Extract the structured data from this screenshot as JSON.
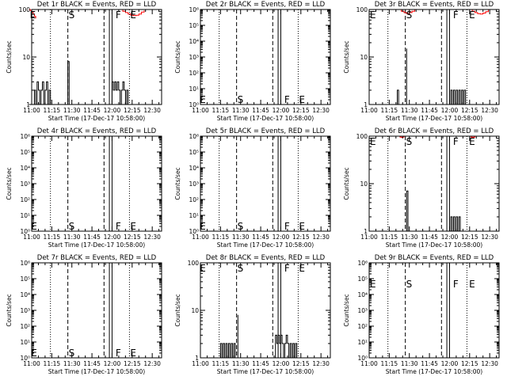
{
  "figure": {
    "background": "#ffffff",
    "foreground": "#000000",
    "lld_color": "#ff0000"
  },
  "chart_data": [
    {
      "type": "line",
      "title": "Det 1r BLACK = Events, RED = LLD",
      "xlabel": "Start Time (17-Dec-17 10:58:00)",
      "ylabel": "Counts/sec",
      "yscale": "log",
      "ylim": [
        1,
        100
      ],
      "yticks": [
        {
          "v": 1,
          "label": "1"
        },
        {
          "v": 10,
          "label": "10"
        },
        {
          "v": 100,
          "label": "100"
        }
      ],
      "xticks": [
        "11:00",
        "11:15",
        "11:30",
        "11:45",
        "12:00",
        "12:15",
        "12:30"
      ],
      "marker_labels": [
        {
          "text": "E",
          "x": "10:58",
          "y": 100
        },
        {
          "text": "S",
          "x": "11:27",
          "y": 100
        },
        {
          "text": "F",
          "x": "12:02",
          "y": 100
        },
        {
          "text": "E",
          "x": "12:13",
          "y": 100
        }
      ],
      "series": [
        {
          "color": "#000000",
          "x": [
            "10:58",
            "11:01",
            "11:02",
            "11:03",
            "11:04",
            "11:05",
            "11:06",
            "11:07",
            "11:08",
            "11:09",
            "11:10",
            "11:11",
            "11:12",
            "11:13",
            "11:14",
            "11:26",
            "11:27",
            "11:28",
            "11:59",
            "12:00",
            "12:01",
            "12:02",
            "12:03",
            "12:04",
            "12:05",
            "12:06",
            "12:07",
            "12:08",
            "12:09",
            "12:10",
            "12:11",
            "12:12"
          ],
          "y": [
            1,
            1,
            2,
            1,
            3,
            2,
            1,
            2,
            3,
            1,
            2,
            3,
            1,
            2,
            1,
            1,
            8,
            1,
            1,
            3,
            2,
            3,
            2,
            3,
            2,
            1,
            2,
            3,
            2,
            1,
            2,
            1
          ]
        },
        {
          "color": "#ff0000",
          "x": [
            "10:58",
            "10:59",
            "11:00",
            "11:01",
            "11:02",
            "11:03",
            "12:06",
            "12:08",
            "12:10",
            "12:12",
            "12:14",
            "12:16",
            "12:18",
            "12:20",
            "12:22",
            "12:24"
          ],
          "y": [
            100,
            95,
            88,
            80,
            72,
            65,
            100,
            92,
            86,
            80,
            76,
            74,
            76,
            80,
            88,
            96
          ]
        }
      ]
    },
    {
      "type": "line",
      "title": "Det 2r BLACK = Events, RED = LLD",
      "xlabel": "Start Time (17-Dec-17 10:58:00)",
      "ylabel": "Counts/sec",
      "yscale": "log",
      "ylim": [
        1,
        1000000
      ],
      "yticks": [
        {
          "v": 1,
          "label": "10⁰"
        },
        {
          "v": 10,
          "label": "10¹"
        },
        {
          "v": 100,
          "label": "10²"
        },
        {
          "v": 1000,
          "label": "10³"
        },
        {
          "v": 10000,
          "label": "10⁴"
        },
        {
          "v": 100000,
          "label": "10⁵"
        },
        {
          "v": 1000000,
          "label": "10⁶"
        }
      ],
      "xticks": [
        "11:00",
        "11:15",
        "11:30",
        "11:45",
        "12:00",
        "12:15",
        "12:30"
      ],
      "marker_labels": [
        {
          "text": "E",
          "x": "10:59",
          "y": 1.6
        },
        {
          "text": "S",
          "x": "11:27",
          "y": 1.6
        },
        {
          "text": "F",
          "x": "12:02",
          "y": 1.6
        },
        {
          "text": "E",
          "x": "12:13",
          "y": 1.6
        }
      ],
      "series": []
    },
    {
      "type": "line",
      "title": "Det 3r BLACK = Events, RED = LLD",
      "xlabel": "Start Time (17-Dec-17 10:58:00)",
      "ylabel": "Counts/sec",
      "yscale": "log",
      "ylim": [
        1,
        100
      ],
      "yticks": [
        {
          "v": 1,
          "label": "1"
        },
        {
          "v": 10,
          "label": "10"
        },
        {
          "v": 100,
          "label": "100"
        }
      ],
      "xticks": [
        "11:00",
        "11:15",
        "11:30",
        "11:45",
        "12:00",
        "12:15",
        "12:30"
      ],
      "marker_labels": [
        {
          "text": "E",
          "x": "11:00",
          "y": 100
        },
        {
          "text": "S",
          "x": "11:27",
          "y": 100
        },
        {
          "text": "F",
          "x": "12:02",
          "y": 100
        },
        {
          "text": "E",
          "x": "12:14",
          "y": 100
        }
      ],
      "series": [
        {
          "color": "#000000",
          "x": [
            "11:20",
            "11:21",
            "11:22",
            "11:27",
            "11:28",
            "12:00",
            "12:01",
            "12:02",
            "12:03",
            "12:04",
            "12:05",
            "12:06",
            "12:07",
            "12:08",
            "12:09",
            "12:10",
            "12:11",
            "12:12"
          ],
          "y": [
            1,
            2,
            1,
            1,
            15,
            1,
            2,
            1,
            2,
            1,
            2,
            1,
            2,
            1,
            2,
            1,
            2,
            1
          ]
        },
        {
          "color": "#ff0000",
          "x": [
            "11:22",
            "11:24",
            "11:26",
            "11:28",
            "11:30",
            "11:32",
            "11:34",
            "12:15",
            "12:17",
            "12:19",
            "12:21",
            "12:23",
            "12:25",
            "12:27",
            "12:29"
          ],
          "y": [
            100,
            92,
            86,
            82,
            86,
            92,
            100,
            100,
            92,
            86,
            82,
            80,
            84,
            90,
            98
          ]
        }
      ]
    },
    {
      "type": "line",
      "title": "Det 4r BLACK = Events, RED = LLD",
      "xlabel": "Start Time (17-Dec-17 10:58:00)",
      "ylabel": "Counts/sec",
      "yscale": "log",
      "ylim": [
        1,
        1000000
      ],
      "yticks": [
        {
          "v": 1,
          "label": "10⁰"
        },
        {
          "v": 10,
          "label": "10¹"
        },
        {
          "v": 100,
          "label": "10²"
        },
        {
          "v": 1000,
          "label": "10³"
        },
        {
          "v": 10000,
          "label": "10⁴"
        },
        {
          "v": 100000,
          "label": "10⁵"
        },
        {
          "v": 1000000,
          "label": "10⁶"
        }
      ],
      "xticks": [
        "11:00",
        "11:15",
        "11:30",
        "11:45",
        "12:00",
        "12:15",
        "12:30"
      ],
      "marker_labels": [
        {
          "text": "E",
          "x": "10:59",
          "y": 1.6
        },
        {
          "text": "S",
          "x": "11:27",
          "y": 1.6
        },
        {
          "text": "F",
          "x": "12:02",
          "y": 1.6
        },
        {
          "text": "E",
          "x": "12:13",
          "y": 1.6
        }
      ],
      "series": []
    },
    {
      "type": "line",
      "title": "Det 5r BLACK = Events, RED = LLD",
      "xlabel": "Start Time (17-Dec-17 10:58:00)",
      "ylabel": "Counts/sec",
      "yscale": "log",
      "ylim": [
        1,
        1000000
      ],
      "yticks": [
        {
          "v": 1,
          "label": "10⁰"
        },
        {
          "v": 10,
          "label": "10¹"
        },
        {
          "v": 100,
          "label": "10²"
        },
        {
          "v": 1000,
          "label": "10³"
        },
        {
          "v": 10000,
          "label": "10⁴"
        },
        {
          "v": 100000,
          "label": "10⁵"
        },
        {
          "v": 1000000,
          "label": "10⁶"
        }
      ],
      "xticks": [
        "11:00",
        "11:15",
        "11:30",
        "11:45",
        "12:00",
        "12:15",
        "12:30"
      ],
      "marker_labels": [
        {
          "text": "E",
          "x": "10:59",
          "y": 1.6
        },
        {
          "text": "S",
          "x": "11:27",
          "y": 1.6
        },
        {
          "text": "F",
          "x": "12:02",
          "y": 1.6
        },
        {
          "text": "E",
          "x": "12:13",
          "y": 1.6
        }
      ],
      "series": []
    },
    {
      "type": "line",
      "title": "Det 6r BLACK = Events, RED = LLD",
      "xlabel": "Start Time (17-Dec-17 10:58:00)",
      "ylabel": "Counts/sec",
      "yscale": "log",
      "ylim": [
        1,
        100
      ],
      "yticks": [
        {
          "v": 1,
          "label": "1"
        },
        {
          "v": 10,
          "label": "10"
        },
        {
          "v": 100,
          "label": "100"
        }
      ],
      "xticks": [
        "11:00",
        "11:15",
        "11:30",
        "11:45",
        "12:00",
        "12:15",
        "12:30"
      ],
      "marker_labels": [
        {
          "text": "E",
          "x": "11:00",
          "y": 100
        },
        {
          "text": "S",
          "x": "11:27",
          "y": 100
        },
        {
          "text": "F",
          "x": "12:02",
          "y": 100
        },
        {
          "text": "E",
          "x": "12:14",
          "y": 100
        }
      ],
      "series": [
        {
          "color": "#000000",
          "x": [
            "11:27",
            "11:28",
            "11:29",
            "12:00",
            "12:01",
            "12:02",
            "12:03",
            "12:04",
            "12:05",
            "12:06",
            "12:07",
            "12:08"
          ],
          "y": [
            1,
            7,
            1,
            1,
            2,
            1,
            2,
            1,
            2,
            1,
            2,
            1
          ]
        },
        {
          "color": "#ff0000",
          "x": [
            "11:22",
            "11:23",
            "11:24",
            "11:25",
            "11:26",
            "12:15",
            "12:16",
            "12:17",
            "12:18",
            "12:19"
          ],
          "y": [
            100,
            96,
            94,
            96,
            100,
            100,
            96,
            94,
            96,
            100
          ]
        }
      ]
    },
    {
      "type": "line",
      "title": "Det 7r BLACK = Events, RED = LLD",
      "xlabel": "Start Time (17-Dec-17 10:58:00)",
      "ylabel": "Counts/sec",
      "yscale": "log",
      "ylim": [
        1,
        1000000
      ],
      "yticks": [
        {
          "v": 1,
          "label": "10⁰"
        },
        {
          "v": 10,
          "label": "10¹"
        },
        {
          "v": 100,
          "label": "10²"
        },
        {
          "v": 1000,
          "label": "10³"
        },
        {
          "v": 10000,
          "label": "10⁴"
        },
        {
          "v": 100000,
          "label": "10⁵"
        },
        {
          "v": 1000000,
          "label": "10⁶"
        }
      ],
      "xticks": [
        "11:00",
        "11:15",
        "11:30",
        "11:45",
        "12:00",
        "12:15",
        "12:30"
      ],
      "marker_labels": [
        {
          "text": "E",
          "x": "10:59",
          "y": 1.6
        },
        {
          "text": "S",
          "x": "11:27",
          "y": 1.6
        },
        {
          "text": "F",
          "x": "12:02",
          "y": 1.6
        },
        {
          "text": "E",
          "x": "12:13",
          "y": 1.6
        }
      ],
      "series": []
    },
    {
      "type": "line",
      "title": "Det 8r BLACK = Events, RED = LLD",
      "xlabel": "Start Time (17-Dec-17 10:58:00)",
      "ylabel": "Counts/sec",
      "yscale": "log",
      "ylim": [
        1,
        100
      ],
      "yticks": [
        {
          "v": 1,
          "label": "1"
        },
        {
          "v": 10,
          "label": "10"
        },
        {
          "v": 100,
          "label": "100"
        }
      ],
      "xticks": [
        "11:00",
        "11:15",
        "11:30",
        "11:45",
        "12:00",
        "12:15",
        "12:30"
      ],
      "marker_labels": [
        {
          "text": "E",
          "x": "10:59",
          "y": 100
        },
        {
          "text": "S",
          "x": "11:27",
          "y": 100
        },
        {
          "text": "F",
          "x": "12:02",
          "y": 100
        },
        {
          "text": "E",
          "x": "12:13",
          "y": 100
        }
      ],
      "series": [
        {
          "color": "#000000",
          "x": [
            "11:14",
            "11:15",
            "11:16",
            "11:17",
            "11:18",
            "11:19",
            "11:20",
            "11:21",
            "11:22",
            "11:23",
            "11:24",
            "11:25",
            "11:26",
            "11:27",
            "11:28",
            "11:55",
            "11:56",
            "11:57",
            "11:58",
            "11:59",
            "12:00",
            "12:01",
            "12:02",
            "12:03",
            "12:04",
            "12:05",
            "12:06",
            "12:07",
            "12:08",
            "12:09",
            "12:10",
            "12:11",
            "12:12",
            "12:13"
          ],
          "y": [
            1,
            2,
            1,
            2,
            1,
            2,
            1,
            2,
            1,
            2,
            1,
            2,
            1,
            1,
            8,
            1,
            3,
            2,
            3,
            2,
            3,
            2,
            1,
            2,
            3,
            2,
            1,
            2,
            1,
            2,
            1,
            2,
            1,
            1
          ]
        }
      ]
    },
    {
      "type": "line",
      "title": "Det 9r BLACK = Events, RED = LLD",
      "xlabel": "Start Time (17-Dec-17 10:58:00)",
      "ylabel": "Counts/sec",
      "yscale": "log",
      "ylim": [
        1,
        1000000
      ],
      "yticks": [
        {
          "v": 1,
          "label": "10⁰"
        },
        {
          "v": 10,
          "label": "10¹"
        },
        {
          "v": 100,
          "label": "10²"
        },
        {
          "v": 1000,
          "label": "10³"
        },
        {
          "v": 10000,
          "label": "10⁴"
        },
        {
          "v": 100000,
          "label": "10⁵"
        },
        {
          "v": 1000000,
          "label": "10⁶"
        }
      ],
      "xticks": [
        "11:00",
        "11:15",
        "11:30",
        "11:45",
        "12:00",
        "12:15",
        "12:30"
      ],
      "marker_labels": [
        {
          "text": "E",
          "x": "11:00",
          "y": 100000
        },
        {
          "text": "S",
          "x": "11:27",
          "y": 100000
        },
        {
          "text": "F",
          "x": "12:02",
          "y": 100000
        },
        {
          "text": "E",
          "x": "12:14",
          "y": 100000
        }
      ],
      "series": []
    }
  ],
  "shared_x": {
    "range": [
      "11:00",
      "12:37"
    ],
    "dotted_lines": [
      "11:14",
      "12:13"
    ],
    "dashed_lines": [
      "11:27",
      "11:54"
    ],
    "solid_lines": [
      "11:58",
      "12:00"
    ]
  }
}
